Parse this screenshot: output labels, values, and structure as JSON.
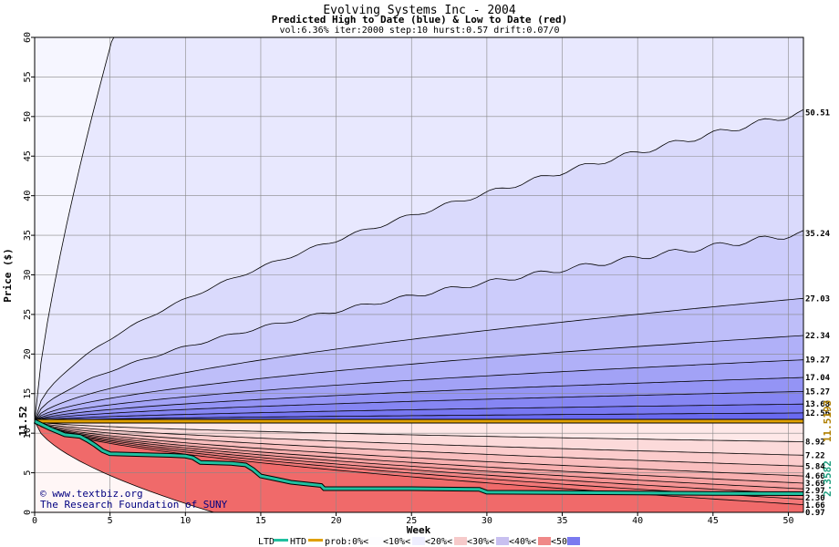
{
  "chart_data": {
    "type": "area",
    "title": "Evolving Systems Inc - 2004",
    "subtitle": "Predicted High to Date (blue) &  Low to Date (red)",
    "params": "vol:6.36% iter:2000 step:10 hurst:0.57 drift:0.07/0",
    "xlabel": "Week",
    "ylabel": "Price ($)",
    "xlim": [
      0,
      51
    ],
    "ylim": [
      0,
      60
    ],
    "xticks": [
      0,
      5,
      10,
      15,
      20,
      25,
      30,
      35,
      40,
      45,
      50
    ],
    "yticks": [
      0,
      5,
      10,
      15,
      20,
      25,
      30,
      35,
      40,
      45,
      50,
      55,
      60
    ],
    "start_price": 11.52,
    "start_price_label": "11.52",
    "grid": true,
    "high_quantiles": [
      {
        "end": 50.51,
        "label": "50.51"
      },
      {
        "end": 35.24,
        "label": "35.24"
      },
      {
        "end": 27.03,
        "label": "27.03"
      },
      {
        "end": 22.34,
        "label": "22.34"
      },
      {
        "end": 19.27,
        "label": "19.27"
      },
      {
        "end": 17.04,
        "label": "17.04"
      },
      {
        "end": 15.27,
        "label": "15.27"
      },
      {
        "end": 13.68,
        "label": "13.68"
      },
      {
        "end": 12.56,
        "label": "12.56"
      }
    ],
    "low_quantiles": [
      {
        "end": 8.92,
        "label": "8.92"
      },
      {
        "end": 7.22,
        "label": "7.22"
      },
      {
        "end": 5.84,
        "label": "5.84"
      },
      {
        "end": 4.6,
        "label": "4.60"
      },
      {
        "end": 3.69,
        "label": "3.69"
      },
      {
        "end": 2.97,
        "label": "2.97"
      },
      {
        "end": 2.3,
        "label": "2.30"
      },
      {
        "end": 1.66,
        "label": "1.66"
      },
      {
        "end": 0.97,
        "label": "0.97"
      }
    ],
    "htd_line": {
      "name": "HTD",
      "end_value_label": "11.5193",
      "x": [
        0,
        51
      ],
      "y": [
        11.52,
        11.52
      ],
      "color": "#e0a000"
    },
    "ltd_line": {
      "name": "LTD",
      "end_value_label": "2.3582",
      "x": [
        0,
        1,
        2,
        3,
        3.5,
        4,
        4.5,
        5,
        7,
        9,
        10,
        10.5,
        11,
        13,
        14,
        14.5,
        15,
        16,
        17,
        19,
        19.2,
        25,
        29.5,
        30,
        35,
        40,
        45,
        51
      ],
      "y": [
        11.52,
        10.6,
        9.8,
        9.6,
        9.1,
        8.5,
        7.8,
        7.4,
        7.3,
        7.2,
        7.1,
        6.9,
        6.3,
        6.2,
        6.0,
        5.4,
        4.6,
        4.2,
        3.8,
        3.4,
        3.0,
        3.0,
        2.9,
        2.55,
        2.5,
        2.45,
        2.4,
        2.36
      ],
      "color": "#20c0a0"
    },
    "colors": {
      "high_dark": "#6a6af0",
      "high_light": "#f6f6ff",
      "low_dark": "#f06a6a",
      "low_light": "#fff6f6",
      "htd": "#e0a000",
      "ltd": "#20c0a0",
      "credit": "#000080"
    }
  },
  "credit": {
    "line1": "© www.textbiz.org",
    "line2": "The Research Foundation of SUNY"
  },
  "legend": {
    "ltd": "LTD",
    "htd": "HTD",
    "prob": "prob:0%<",
    "p10": "<10%<",
    "p20": "<20%<",
    "p30": "<30%<",
    "p40": "<40%<",
    "p50": "<50%"
  }
}
